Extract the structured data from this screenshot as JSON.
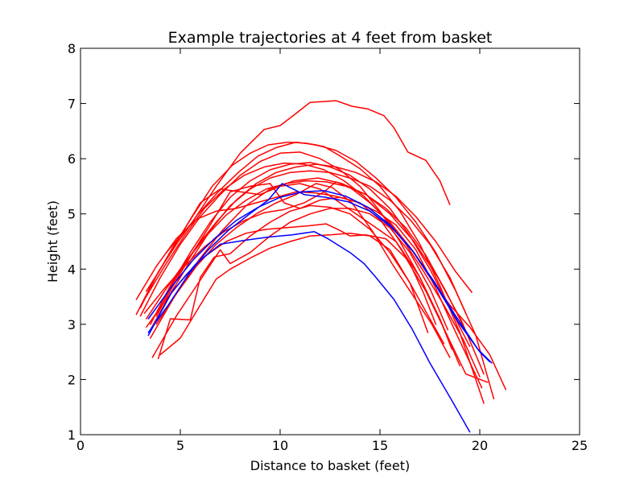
{
  "chart_data": {
    "type": "line",
    "title": "Example trajectories at 4 feet from basket",
    "xlabel": "Distance to basket (feet)",
    "ylabel": "Height (feet)",
    "xlim": [
      0,
      25
    ],
    "ylim": [
      1,
      8
    ],
    "xticks": [
      0,
      5,
      10,
      15,
      20,
      25
    ],
    "yticks": [
      1,
      2,
      3,
      4,
      5,
      6,
      7,
      8
    ],
    "grid": false,
    "legend": "none",
    "colors": {
      "made": "#ff0000",
      "missed": "#0000ff"
    },
    "series": [
      {
        "color": "#ff0000",
        "x": [
          4.3,
          5.6,
          6.8,
          8.0,
          9.2,
          10.0,
          10.8,
          11.5,
          12.8,
          13.6,
          14.4,
          15.2,
          15.7,
          16.4,
          17.3,
          18.0,
          18.5
        ],
        "y": [
          4.3,
          4.85,
          5.5,
          6.1,
          6.53,
          6.6,
          6.82,
          7.02,
          7.05,
          6.95,
          6.9,
          6.78,
          6.56,
          6.12,
          5.97,
          5.6,
          5.17
        ]
      },
      {
        "color": "#ff0000",
        "x": [
          2.8,
          3.6,
          4.6,
          5.6,
          6.6,
          7.6,
          8.5,
          9.4,
          10.4,
          11.3,
          12.2,
          13.0,
          14.0,
          15.0,
          16.0,
          17.0,
          18.0,
          19.0,
          20.2
        ],
        "y": [
          3.18,
          3.75,
          4.38,
          4.95,
          5.5,
          5.88,
          6.1,
          6.25,
          6.3,
          6.28,
          6.22,
          6.05,
          5.82,
          5.5,
          5.05,
          4.45,
          3.7,
          2.85,
          1.57
        ]
      },
      {
        "color": "#ff0000",
        "x": [
          3.0,
          4.0,
          5.0,
          6.0,
          7.0,
          8.0,
          9.0,
          10.0,
          11.0,
          12.0,
          13.0,
          14.0,
          15.0,
          16.0,
          17.0,
          18.0,
          19.0
        ],
        "y": [
          3.15,
          3.85,
          4.45,
          4.95,
          5.35,
          5.7,
          5.95,
          6.1,
          6.12,
          6.0,
          5.8,
          5.5,
          5.05,
          4.5,
          3.85,
          3.1,
          2.25
        ]
      },
      {
        "color": "#ff0000",
        "x": [
          3.0,
          3.9,
          4.9,
          5.9,
          6.9,
          7.9,
          8.9,
          9.8,
          10.8,
          11.8,
          12.8,
          13.8,
          14.8,
          15.8,
          16.8,
          17.8,
          18.8,
          19.8,
          20.7
        ],
        "y": [
          3.3,
          3.95,
          4.5,
          5.0,
          5.4,
          5.75,
          6.05,
          6.2,
          6.3,
          6.25,
          6.15,
          5.95,
          5.65,
          5.3,
          4.85,
          4.3,
          3.6,
          2.8,
          1.65
        ]
      },
      {
        "color": "#ff0000",
        "x": [
          3.2,
          4.2,
          5.2,
          6.2,
          7.2,
          8.2,
          9.2,
          10.2,
          11.2,
          12.2,
          13.2,
          14.2,
          15.2,
          16.2,
          17.2,
          18.2,
          19.2,
          20.0
        ],
        "y": [
          3.45,
          4.05,
          4.6,
          5.1,
          5.45,
          5.7,
          5.85,
          5.92,
          5.9,
          5.8,
          5.6,
          5.32,
          4.95,
          4.5,
          3.95,
          3.35,
          2.7,
          2.05
        ]
      },
      {
        "color": "#ff0000",
        "x": [
          3.5,
          4.5,
          5.5,
          6.5,
          7.5,
          8.5,
          9.5,
          10.5,
          11.5,
          12.5,
          13.5,
          14.5,
          15.5,
          16.5,
          17.5,
          18.5,
          19.5
        ],
        "y": [
          3.0,
          3.7,
          4.3,
          4.85,
          5.3,
          5.6,
          5.8,
          5.9,
          5.93,
          5.85,
          5.7,
          5.45,
          5.1,
          4.6,
          4.0,
          3.3,
          2.6
        ]
      },
      {
        "color": "#ff0000",
        "x": [
          3.5,
          4.5,
          5.5,
          6.5,
          7.5,
          8.5,
          9.5,
          10.5,
          11.5,
          12.5,
          13.5,
          14.5,
          15.5,
          16.5,
          17.5,
          18.5,
          19.3
        ],
        "y": [
          2.9,
          3.55,
          4.15,
          4.7,
          5.15,
          5.45,
          5.65,
          5.75,
          5.78,
          5.75,
          5.65,
          5.5,
          5.25,
          4.9,
          4.45,
          3.85,
          3.2
        ]
      },
      {
        "color": "#ff0000",
        "x": [
          3.8,
          4.8,
          5.8,
          6.8,
          7.8,
          8.8,
          9.8,
          10.8,
          11.8,
          12.8,
          13.8,
          14.8,
          15.8,
          16.8,
          17.8,
          18.8,
          19.6
        ],
        "y": [
          3.2,
          3.85,
          4.4,
          4.85,
          5.25,
          5.55,
          5.75,
          5.85,
          5.9,
          5.85,
          5.75,
          5.58,
          5.32,
          4.95,
          4.5,
          3.95,
          3.58
        ]
      },
      {
        "color": "#ff0000",
        "x": [
          3.3,
          4.3,
          5.3,
          6.3,
          7.3,
          8.3,
          9.3,
          10.3,
          11.3,
          12.3,
          13.3,
          14.3,
          15.3,
          16.3,
          17.3,
          18.3,
          19.2
        ],
        "y": [
          3.1,
          3.65,
          4.15,
          4.6,
          4.98,
          5.25,
          5.45,
          5.55,
          5.6,
          5.58,
          5.5,
          5.35,
          5.1,
          4.75,
          4.25,
          3.6,
          2.95
        ]
      },
      {
        "color": "#ff0000",
        "x": [
          3.5,
          4.7,
          5.9,
          7.1,
          8.3,
          9.5,
          10.7,
          11.9,
          13.1,
          14.3,
          15.5,
          16.7,
          17.9,
          19.1,
          20.2
        ],
        "y": [
          2.75,
          3.5,
          4.15,
          4.7,
          5.15,
          5.45,
          5.6,
          5.65,
          5.55,
          5.35,
          5.0,
          4.5,
          3.85,
          3.05,
          2.1
        ]
      },
      {
        "color": "#ff0000",
        "x": [
          3.6,
          4.8,
          6.0,
          7.0,
          7.5,
          8.5,
          9.5,
          10.5,
          11.5,
          12.5,
          13.5,
          14.5,
          15.5,
          16.5,
          17.5,
          18.4
        ],
        "y": [
          2.4,
          3.15,
          3.8,
          4.35,
          4.1,
          4.3,
          4.6,
          4.85,
          5.0,
          5.1,
          5.1,
          5.0,
          4.75,
          4.3,
          3.65,
          2.9
        ]
      },
      {
        "color": "#ff0000",
        "x": [
          3.9,
          4.5,
          5.5,
          6.0,
          6.7,
          7.5,
          8.5,
          9.5,
          10.5,
          11.5,
          12.5,
          13.5,
          14.5,
          15.5,
          16.5,
          17.5,
          18.2
        ],
        "y": [
          2.38,
          3.1,
          3.08,
          3.85,
          4.22,
          4.28,
          4.6,
          4.85,
          5.05,
          5.15,
          5.12,
          5.0,
          4.72,
          4.3,
          3.75,
          3.1,
          2.65
        ]
      },
      {
        "color": "#ff0000",
        "x": [
          4.0,
          5.0,
          6.0,
          6.8,
          7.5,
          8.5,
          9.5,
          10.5,
          11.5,
          12.5,
          13.5,
          14.5,
          15.5,
          16.5,
          17.4
        ],
        "y": [
          2.45,
          2.75,
          3.35,
          3.82,
          4.0,
          4.2,
          4.38,
          4.5,
          4.6,
          4.62,
          4.65,
          4.6,
          4.35,
          3.75,
          2.85
        ]
      },
      {
        "color": "#ff0000",
        "x": [
          3.3,
          4.0,
          5.0,
          6.0,
          7.0,
          8.0,
          9.0,
          10.0,
          11.0,
          12.0,
          13.0,
          14.0,
          15.0,
          15.8,
          16.5,
          17.2,
          17.8
        ],
        "y": [
          3.6,
          4.0,
          4.6,
          5.2,
          5.45,
          5.4,
          5.35,
          5.5,
          5.55,
          5.45,
          5.2,
          4.95,
          4.7,
          4.5,
          4.1,
          3.55,
          3.0
        ]
      },
      {
        "color": "#ff0000",
        "x": [
          3.8,
          4.8,
          5.8,
          6.5,
          7.5,
          8.5,
          9.5,
          10.2,
          11.0,
          12.0,
          13.0,
          14.0,
          15.0,
          16.0,
          17.0,
          18.0,
          18.6
        ],
        "y": [
          3.15,
          3.8,
          4.4,
          4.8,
          5.4,
          5.5,
          5.55,
          5.2,
          5.1,
          5.25,
          5.3,
          5.2,
          4.9,
          4.4,
          3.85,
          3.1,
          2.55
        ]
      },
      {
        "color": "#ff0000",
        "x": [
          2.8,
          3.8,
          4.8,
          5.8,
          6.8,
          7.8,
          8.8,
          9.8,
          10.8,
          11.8,
          12.8,
          13.8,
          14.8,
          15.8,
          16.8,
          17.8,
          18.8,
          20.1
        ],
        "y": [
          3.45,
          4.05,
          4.55,
          4.9,
          5.05,
          5.1,
          5.2,
          5.3,
          5.4,
          5.38,
          5.32,
          5.22,
          5.05,
          4.8,
          4.35,
          3.65,
          2.85,
          1.85
        ]
      },
      {
        "color": "#ff0000",
        "x": [
          3.2,
          4.2,
          5.2,
          6.2,
          7.2,
          8.2,
          9.2,
          10.2,
          11.2,
          12.2,
          12.8,
          13.5,
          14.5,
          15.5,
          16.5,
          17.5,
          18.5,
          19.5,
          20.5,
          21.3
        ],
        "y": [
          3.2,
          3.65,
          4.05,
          4.4,
          4.68,
          4.88,
          5.02,
          5.08,
          5.2,
          5.4,
          5.58,
          5.48,
          5.2,
          4.85,
          4.4,
          3.85,
          3.35,
          2.95,
          2.45,
          1.82
        ]
      },
      {
        "color": "#ff0000",
        "x": [
          3.8,
          4.8,
          5.8,
          6.8,
          7.8,
          8.8,
          9.8,
          10.8,
          11.8,
          12.6,
          13.6,
          14.6,
          15.6,
          16.6,
          17.6,
          18.5
        ],
        "y": [
          3.0,
          3.55,
          4.05,
          4.45,
          4.75,
          5.0,
          5.2,
          5.35,
          5.55,
          5.48,
          5.2,
          4.7,
          4.1,
          3.55,
          3.0,
          2.4
        ]
      },
      {
        "color": "#ff0000",
        "x": [
          3.3,
          4.3,
          5.3,
          6.3,
          7.3,
          8.3,
          9.3,
          10.3,
          11.3,
          12.3,
          13.0,
          13.5,
          14.3,
          15.3,
          16.3,
          17.3,
          18.3,
          19.3,
          20.4
        ],
        "y": [
          2.95,
          3.45,
          3.9,
          4.25,
          4.5,
          4.65,
          4.72,
          4.75,
          4.78,
          4.82,
          4.7,
          4.6,
          4.62,
          4.55,
          4.2,
          3.6,
          2.85,
          2.1,
          1.95
        ]
      },
      {
        "color": "#0000ff",
        "x": [
          3.4,
          4.5,
          5.6,
          6.7,
          7.8,
          8.9,
          10.0,
          11.1,
          12.2,
          13.3,
          14.4,
          15.5,
          16.6,
          17.7,
          18.8,
          19.9,
          20.6
        ],
        "y": [
          3.1,
          3.65,
          4.15,
          4.55,
          4.88,
          5.12,
          5.3,
          5.4,
          5.42,
          5.32,
          5.12,
          4.8,
          4.35,
          3.78,
          3.15,
          2.55,
          2.3
        ]
      },
      {
        "color": "#0000ff",
        "x": [
          3.4,
          4.4,
          5.4,
          6.4,
          7.4,
          8.4,
          9.4,
          10.1,
          11.2,
          12.3,
          13.4,
          14.5,
          15.6,
          16.7,
          17.8,
          18.9,
          20.0,
          20.5
        ],
        "y": [
          2.85,
          3.35,
          3.9,
          4.35,
          4.7,
          4.98,
          5.25,
          5.55,
          5.35,
          5.3,
          5.22,
          5.05,
          4.75,
          4.3,
          3.7,
          3.05,
          2.5,
          2.32
        ]
      },
      {
        "color": "#0000ff",
        "x": [
          3.4,
          4.6,
          5.8,
          7.0,
          8.2,
          9.4,
          10.6,
          11.7,
          12.4,
          13.5,
          14.2,
          14.8,
          15.7,
          16.6,
          17.5,
          18.6,
          19.5
        ],
        "y": [
          2.8,
          3.6,
          4.1,
          4.45,
          4.52,
          4.58,
          4.62,
          4.68,
          4.55,
          4.3,
          4.1,
          3.85,
          3.45,
          2.92,
          2.3,
          1.62,
          1.05
        ]
      }
    ]
  }
}
